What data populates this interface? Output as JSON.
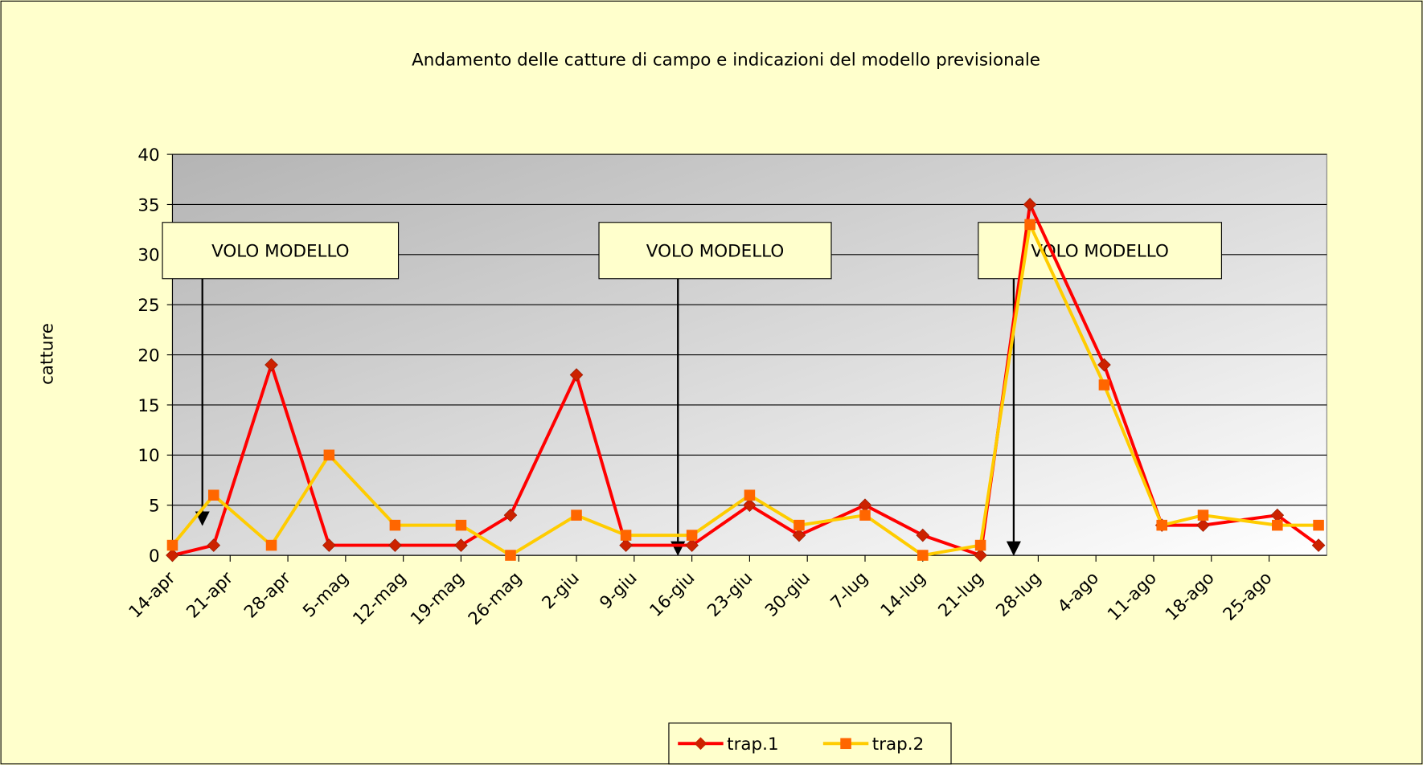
{
  "chart_data": {
    "type": "line",
    "title": "Andamento delle catture di campo e indicazioni del modello previsionale",
    "y_label": "catture",
    "x": [
      0,
      5,
      12,
      19,
      27,
      35,
      41,
      49,
      55,
      63,
      70,
      76,
      84,
      91,
      98,
      104,
      113,
      120,
      125,
      134,
      139
    ],
    "xlim": [
      0,
      140
    ],
    "xticks": [
      {
        "value": 0,
        "label": "14-apr"
      },
      {
        "value": 7,
        "label": "21-apr"
      },
      {
        "value": 14,
        "label": "28-apr"
      },
      {
        "value": 21,
        "label": "5-mag"
      },
      {
        "value": 28,
        "label": "12-mag"
      },
      {
        "value": 35,
        "label": "19-mag"
      },
      {
        "value": 42,
        "label": "26-mag"
      },
      {
        "value": 49,
        "label": "2-giu"
      },
      {
        "value": 56,
        "label": "9-giu"
      },
      {
        "value": 63,
        "label": "16-giu"
      },
      {
        "value": 70,
        "label": "23-giu"
      },
      {
        "value": 77,
        "label": "30-giu"
      },
      {
        "value": 84,
        "label": "7-lug"
      },
      {
        "value": 91,
        "label": "14-lug"
      },
      {
        "value": 98,
        "label": "21-lug"
      },
      {
        "value": 105,
        "label": "28-lug"
      },
      {
        "value": 112,
        "label": "4-ago"
      },
      {
        "value": 119,
        "label": "11-ago"
      },
      {
        "value": 126,
        "label": "18-ago"
      },
      {
        "value": 133,
        "label": "25-ago"
      }
    ],
    "ylim": [
      0,
      40
    ],
    "yticks": [
      0,
      5,
      10,
      15,
      20,
      25,
      30,
      35,
      40
    ],
    "grid": true,
    "legend": "bottom",
    "series": [
      {
        "name": "trap.1",
        "color": "#ff0000",
        "marker": "diamond",
        "marker_color": "#cc2200",
        "values": [
          0,
          1,
          19,
          1,
          1,
          1,
          4,
          18,
          1,
          1,
          5,
          2,
          5,
          2,
          0,
          35,
          19,
          3,
          3,
          4,
          1
        ]
      },
      {
        "name": "trap.2",
        "color": "#ffcc00",
        "marker": "square",
        "marker_color": "#ff6600",
        "values": [
          1,
          6,
          1,
          10,
          3,
          3,
          0,
          4,
          2,
          2,
          6,
          3,
          4,
          0,
          1,
          33,
          17,
          3,
          4,
          3,
          3
        ]
      }
    ],
    "annotations": [
      {
        "text": "VOLO MODELLO"
      },
      {
        "text": "VOLO MODELLO"
      },
      {
        "text": "VOLO MODELLO"
      }
    ]
  }
}
